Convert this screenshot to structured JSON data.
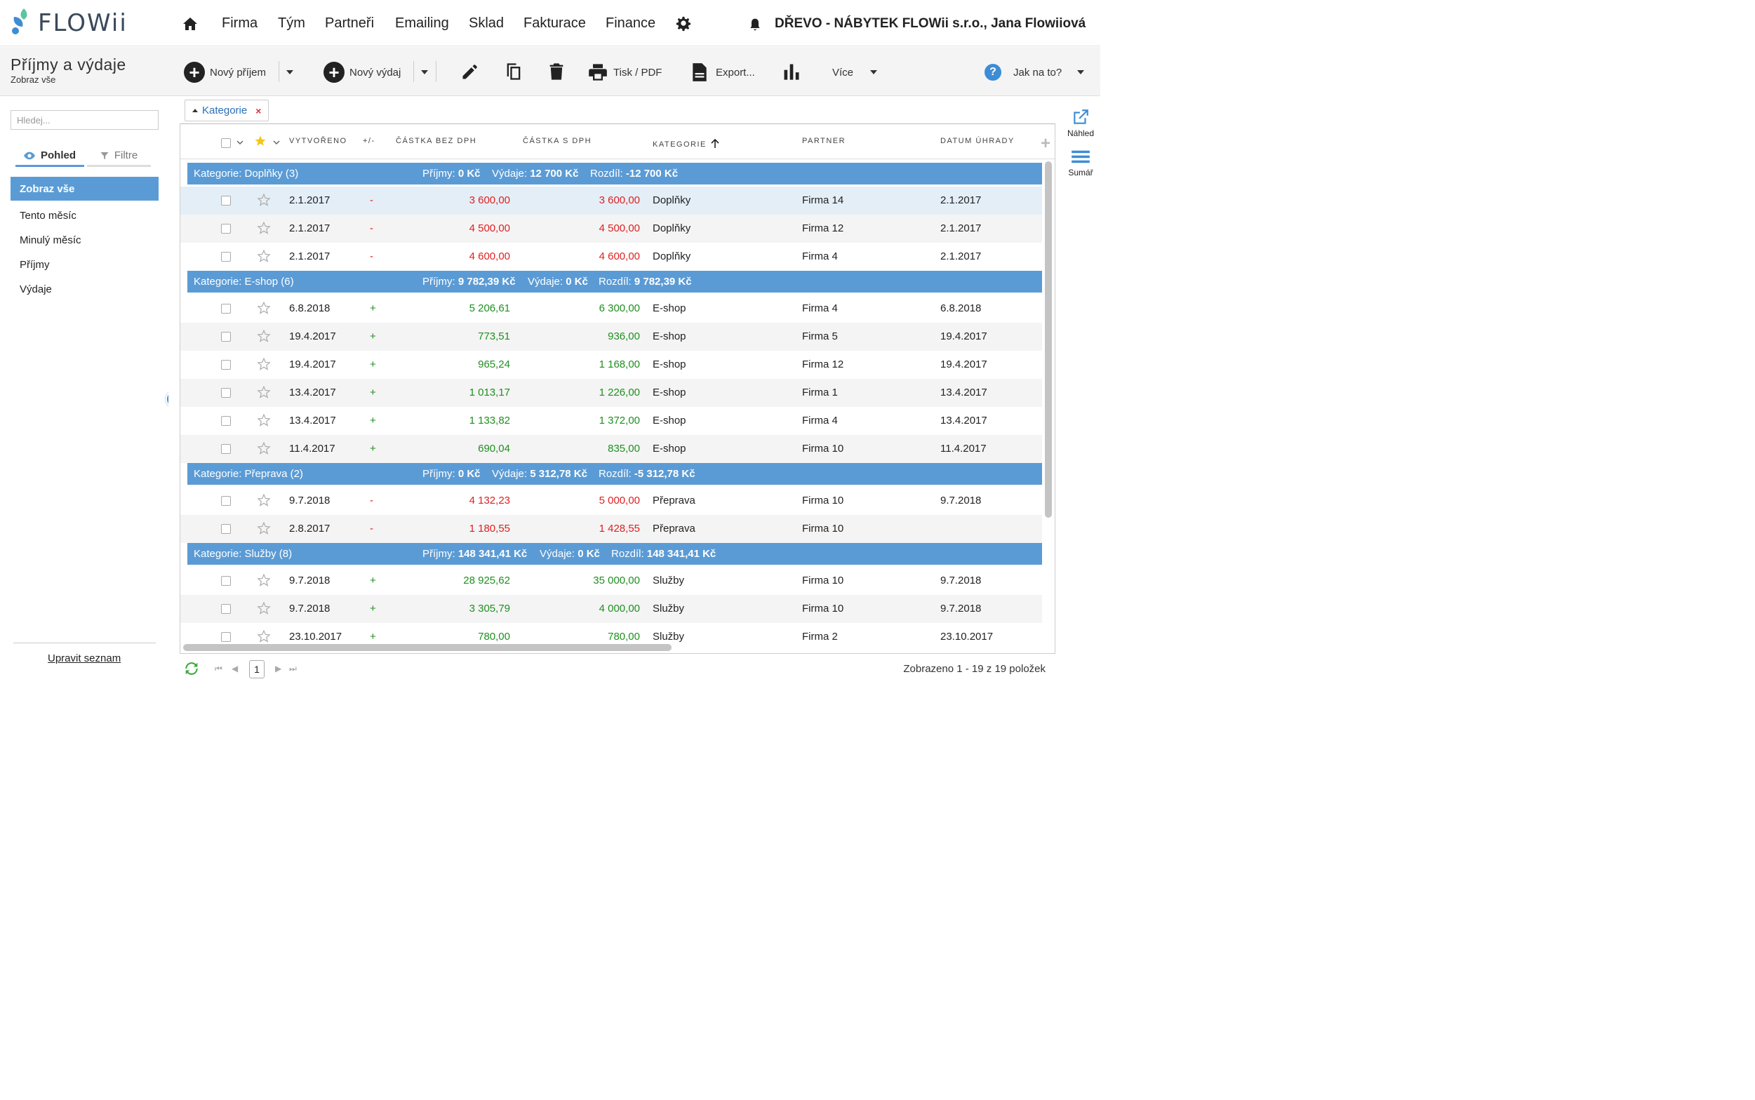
{
  "app": {
    "logo_text": "FLOWii",
    "company": "DŘEVO - NÁBYTEK FLOWii s.r.o., Jana Flowiiová",
    "colors": {
      "accent": "#5b9bd5",
      "link": "#2a6fb5",
      "expense": "#e02020",
      "income": "#1f8f1f",
      "logo_blue": "#3c8dd5",
      "logo_green": "#5cc4a0"
    }
  },
  "nav": {
    "items": [
      "Firma",
      "Tým",
      "Partneři",
      "Emailing",
      "Sklad",
      "Fakturace",
      "Finance"
    ],
    "icons": {
      "home": "home-icon",
      "settings": "gear-icon",
      "notifications": "bell-icon"
    }
  },
  "toolbar": {
    "title": "Příjmy a výdaje",
    "subtitle": "Zobraz vše",
    "new_income": "Nový příjem",
    "new_expense": "Nový výdaj",
    "print": "Tisk / PDF",
    "export": "Export...",
    "more": "Více",
    "help": "Jak na to?",
    "help_symbol": "?",
    "plus_symbol": "+"
  },
  "sidebar": {
    "search_placeholder": "Hledej...",
    "tab_view": "Pohled",
    "tab_filters": "Filtre",
    "items": [
      "Zobraz vše",
      "Tento měsíc",
      "Minulý měsíc",
      "Příjmy",
      "Výdaje"
    ],
    "edit_list": "Upravit seznam"
  },
  "grouping": {
    "chip_label": "Kategorie",
    "chip_remove": "×"
  },
  "grid": {
    "columns": [
      "Vytvořeno",
      "+/-",
      "Částka bez DPH",
      "Částka s DPH",
      "Kategorie",
      "Partner",
      "Datum úhrady"
    ],
    "add_column": "+",
    "groups": [
      {
        "title": "Kategorie: Doplňky (3)",
        "income_label": "Příjmy:",
        "income": "0 Kč",
        "expense_label": "Výdaje:",
        "expense": "12 700 Kč",
        "diff_label": "Rozdíl:",
        "diff": "-12 700 Kč",
        "rows": [
          {
            "created": "2.1.2017",
            "sign": "-",
            "net": "3 600,00",
            "gross": "3 600,00",
            "category": "Doplňky",
            "partner": "Firma 14",
            "paid": "2.1.2017"
          },
          {
            "created": "2.1.2017",
            "sign": "-",
            "net": "4 500,00",
            "gross": "4 500,00",
            "category": "Doplňky",
            "partner": "Firma 12",
            "paid": "2.1.2017"
          },
          {
            "created": "2.1.2017",
            "sign": "-",
            "net": "4 600,00",
            "gross": "4 600,00",
            "category": "Doplňky",
            "partner": "Firma 4",
            "paid": "2.1.2017"
          }
        ]
      },
      {
        "title": "Kategorie: E-shop (6)",
        "income_label": "Příjmy:",
        "income": "9 782,39 Kč",
        "expense_label": "Výdaje:",
        "expense": "0 Kč",
        "diff_label": "Rozdíl:",
        "diff": "9 782,39 Kč",
        "rows": [
          {
            "created": "6.8.2018",
            "sign": "+",
            "net": "5 206,61",
            "gross": "6 300,00",
            "category": "E-shop",
            "partner": "Firma 4",
            "paid": "6.8.2018"
          },
          {
            "created": "19.4.2017",
            "sign": "+",
            "net": "773,51",
            "gross": "936,00",
            "category": "E-shop",
            "partner": "Firma 5",
            "paid": "19.4.2017"
          },
          {
            "created": "19.4.2017",
            "sign": "+",
            "net": "965,24",
            "gross": "1 168,00",
            "category": "E-shop",
            "partner": "Firma 12",
            "paid": "19.4.2017"
          },
          {
            "created": "13.4.2017",
            "sign": "+",
            "net": "1 013,17",
            "gross": "1 226,00",
            "category": "E-shop",
            "partner": "Firma 1",
            "paid": "13.4.2017"
          },
          {
            "created": "13.4.2017",
            "sign": "+",
            "net": "1 133,82",
            "gross": "1 372,00",
            "category": "E-shop",
            "partner": "Firma 4",
            "paid": "13.4.2017"
          },
          {
            "created": "11.4.2017",
            "sign": "+",
            "net": "690,04",
            "gross": "835,00",
            "category": "E-shop",
            "partner": "Firma 10",
            "paid": "11.4.2017"
          }
        ]
      },
      {
        "title": "Kategorie: Přeprava (2)",
        "income_label": "Příjmy:",
        "income": "0 Kč",
        "expense_label": "Výdaje:",
        "expense": "5 312,78 Kč",
        "diff_label": "Rozdíl:",
        "diff": "-5 312,78 Kč",
        "rows": [
          {
            "created": "9.7.2018",
            "sign": "-",
            "net": "4 132,23",
            "gross": "5 000,00",
            "category": "Přeprava",
            "partner": "Firma 10",
            "paid": "9.7.2018"
          },
          {
            "created": "2.8.2017",
            "sign": "-",
            "net": "1 180,55",
            "gross": "1 428,55",
            "category": "Přeprava",
            "partner": "Firma 10",
            "paid": ""
          }
        ]
      },
      {
        "title": "Kategorie: Služby (8)",
        "income_label": "Příjmy:",
        "income": "148 341,41 Kč",
        "expense_label": "Výdaje:",
        "expense": "0 Kč",
        "diff_label": "Rozdíl:",
        "diff": "148 341,41 Kč",
        "rows": [
          {
            "created": "9.7.2018",
            "sign": "+",
            "net": "28 925,62",
            "gross": "35 000,00",
            "category": "Služby",
            "partner": "Firma 10",
            "paid": "9.7.2018"
          },
          {
            "created": "9.7.2018",
            "sign": "+",
            "net": "3 305,79",
            "gross": "4 000,00",
            "category": "Služby",
            "partner": "Firma 10",
            "paid": "9.7.2018"
          },
          {
            "created": "23.10.2017",
            "sign": "+",
            "net": "780,00",
            "gross": "780,00",
            "category": "Služby",
            "partner": "Firma 2",
            "paid": "23.10.2017"
          }
        ]
      }
    ]
  },
  "pager": {
    "page": "1",
    "info": "Zobrazeno 1 - 19 z 19 položek"
  },
  "right_rail": {
    "preview": "Náhled",
    "summary": "Sumář"
  }
}
